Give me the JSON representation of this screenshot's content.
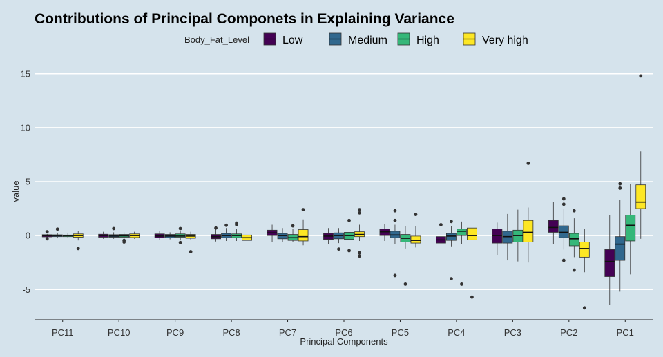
{
  "chart_data": {
    "type": "boxplot",
    "title": "Contributions of Principal Componets in Explaining Variance",
    "xlabel": "Principal Components",
    "ylabel": "value",
    "ylim": [
      -7.8,
      16.2
    ],
    "yticks": [
      -5,
      0,
      5,
      10,
      15
    ],
    "grid": "horizontal major lines",
    "legend": {
      "title": "Body_Fat_Level",
      "position": "top"
    },
    "categories": [
      "PC11",
      "PC10",
      "PC9",
      "PC8",
      "PC7",
      "PC6",
      "PC5",
      "PC4",
      "PC3",
      "PC2",
      "PC1"
    ],
    "series": [
      {
        "name": "Low",
        "color": "#440154",
        "boxes": [
          {
            "min": -0.2,
            "q1": -0.12,
            "median": 0.0,
            "q3": 0.08,
            "max": 0.15,
            "outliers": [
              0.35,
              -0.3
            ]
          },
          {
            "min": -0.3,
            "q1": -0.15,
            "median": 0.0,
            "q3": 0.12,
            "max": 0.35,
            "outliers": []
          },
          {
            "min": -0.4,
            "q1": -0.2,
            "median": -0.05,
            "q3": 0.15,
            "max": 0.45,
            "outliers": []
          },
          {
            "min": -0.55,
            "q1": -0.3,
            "median": -0.1,
            "q3": 0.1,
            "max": 0.6,
            "outliers": [
              0.7
            ]
          },
          {
            "min": -0.6,
            "q1": 0.0,
            "median": 0.25,
            "q3": 0.5,
            "max": 1.0,
            "outliers": []
          },
          {
            "min": -0.8,
            "q1": -0.35,
            "median": -0.05,
            "q3": 0.2,
            "max": 0.7,
            "outliers": []
          },
          {
            "min": -0.5,
            "q1": 0.0,
            "median": 0.35,
            "q3": 0.6,
            "max": 1.1,
            "outliers": []
          },
          {
            "min": -1.3,
            "q1": -0.7,
            "median": -0.4,
            "q3": -0.1,
            "max": 0.5,
            "outliers": [
              1.0
            ]
          },
          {
            "min": -1.8,
            "q1": -0.7,
            "median": 0.0,
            "q3": 0.6,
            "max": 1.2,
            "outliers": []
          },
          {
            "min": -0.8,
            "q1": 0.3,
            "median": 0.75,
            "q3": 1.4,
            "max": 3.1,
            "outliers": []
          },
          {
            "min": -6.4,
            "q1": -3.8,
            "median": -2.4,
            "q3": -1.3,
            "max": 1.9,
            "outliers": []
          }
        ]
      },
      {
        "name": "Medium",
        "color": "#31688e",
        "boxes": [
          {
            "min": -0.25,
            "q1": -0.1,
            "median": 0.0,
            "q3": 0.07,
            "max": 0.2,
            "outliers": [
              0.6
            ]
          },
          {
            "min": -0.3,
            "q1": -0.15,
            "median": -0.05,
            "q3": 0.08,
            "max": 0.3,
            "outliers": [
              0.65
            ]
          },
          {
            "min": -0.35,
            "q1": -0.2,
            "median": -0.05,
            "q3": 0.1,
            "max": 0.3,
            "outliers": []
          },
          {
            "min": -0.5,
            "q1": -0.2,
            "median": 0.0,
            "q3": 0.2,
            "max": 0.7,
            "outliers": [
              0.95
            ]
          },
          {
            "min": -0.6,
            "q1": -0.3,
            "median": 0.0,
            "q3": 0.2,
            "max": 0.7,
            "outliers": []
          },
          {
            "min": -0.7,
            "q1": -0.3,
            "median": 0.0,
            "q3": 0.25,
            "max": 0.7,
            "outliers": [
              -1.25
            ]
          },
          {
            "min": -0.8,
            "q1": -0.2,
            "median": 0.05,
            "q3": 0.4,
            "max": 1.0,
            "outliers": [
              2.3,
              1.4,
              -3.7
            ]
          },
          {
            "min": -1.0,
            "q1": -0.45,
            "median": -0.05,
            "q3": 0.2,
            "max": 0.9,
            "outliers": [
              1.3,
              -4.0
            ]
          },
          {
            "min": -2.3,
            "q1": -0.7,
            "median": -0.1,
            "q3": 0.4,
            "max": 2.0,
            "outliers": []
          },
          {
            "min": -1.3,
            "q1": -0.2,
            "median": 0.3,
            "q3": 0.9,
            "max": 2.5,
            "outliers": [
              3.4,
              2.9,
              -2.3
            ]
          },
          {
            "min": -5.2,
            "q1": -2.3,
            "median": -0.8,
            "q3": -0.1,
            "max": 3.3,
            "outliers": [
              4.8,
              4.4
            ]
          }
        ]
      },
      {
        "name": "High",
        "color": "#35b779",
        "boxes": [
          {
            "min": -0.2,
            "q1": -0.1,
            "median": 0.0,
            "q3": 0.05,
            "max": 0.2,
            "outliers": []
          },
          {
            "min": -0.3,
            "q1": -0.15,
            "median": -0.03,
            "q3": 0.1,
            "max": 0.3,
            "outliers": [
              -0.45,
              -0.6
            ]
          },
          {
            "min": -0.4,
            "q1": -0.15,
            "median": -0.05,
            "q3": 0.15,
            "max": 0.4,
            "outliers": [
              0.65,
              -0.65
            ]
          },
          {
            "min": -0.5,
            "q1": -0.2,
            "median": 0.0,
            "q3": 0.15,
            "max": 0.6,
            "outliers": [
              1.15,
              1.0
            ]
          },
          {
            "min": -0.6,
            "q1": -0.45,
            "median": -0.2,
            "q3": 0.1,
            "max": 0.6,
            "outliers": [
              0.9
            ]
          },
          {
            "min": -0.8,
            "q1": -0.35,
            "median": 0.0,
            "q3": 0.3,
            "max": 0.9,
            "outliers": [
              1.4,
              -1.4
            ]
          },
          {
            "min": -1.2,
            "q1": -0.6,
            "median": -0.25,
            "q3": 0.1,
            "max": 0.9,
            "outliers": [
              -4.5
            ]
          },
          {
            "min": -0.8,
            "q1": 0.0,
            "median": 0.4,
            "q3": 0.6,
            "max": 1.3,
            "outliers": [
              -4.5
            ]
          },
          {
            "min": -2.4,
            "q1": -0.6,
            "median": 0.0,
            "q3": 0.5,
            "max": 2.4,
            "outliers": []
          },
          {
            "min": -2.0,
            "q1": -0.95,
            "median": -0.3,
            "q3": 0.2,
            "max": 1.6,
            "outliers": [
              2.3,
              -3.2
            ]
          },
          {
            "min": -3.6,
            "q1": -0.5,
            "median": 0.95,
            "q3": 1.9,
            "max": 4.8,
            "outliers": []
          }
        ]
      },
      {
        "name": "Very high",
        "color": "#fde725",
        "boxes": [
          {
            "min": -0.45,
            "q1": -0.15,
            "median": 0.0,
            "q3": 0.15,
            "max": 0.4,
            "outliers": [
              -1.2
            ]
          },
          {
            "min": -0.3,
            "q1": -0.18,
            "median": 0.0,
            "q3": 0.15,
            "max": 0.35,
            "outliers": []
          },
          {
            "min": -0.4,
            "q1": -0.25,
            "median": -0.05,
            "q3": 0.1,
            "max": 0.35,
            "outliers": [
              -1.5
            ]
          },
          {
            "min": -0.8,
            "q1": -0.45,
            "median": -0.2,
            "q3": 0.05,
            "max": 0.6,
            "outliers": []
          },
          {
            "min": -0.9,
            "q1": -0.5,
            "median": -0.1,
            "q3": 0.55,
            "max": 1.5,
            "outliers": [
              2.4
            ]
          },
          {
            "min": -0.5,
            "q1": -0.1,
            "median": 0.1,
            "q3": 0.35,
            "max": 1.0,
            "outliers": [
              2.4,
              2.1,
              -1.6,
              -1.9
            ]
          },
          {
            "min": -1.1,
            "q1": -0.7,
            "median": -0.45,
            "q3": -0.05,
            "max": 0.9,
            "outliers": [
              1.95
            ]
          },
          {
            "min": -0.9,
            "q1": -0.4,
            "median": 0.0,
            "q3": 0.7,
            "max": 1.6,
            "outliers": [
              -5.7
            ]
          },
          {
            "min": -2.5,
            "q1": -0.6,
            "median": 0.3,
            "q3": 1.4,
            "max": 2.6,
            "outliers": [
              6.7
            ]
          },
          {
            "min": -3.4,
            "q1": -2.0,
            "median": -1.2,
            "q3": -0.6,
            "max": 0.6,
            "outliers": [
              -6.7
            ]
          },
          {
            "min": -0.3,
            "q1": 2.5,
            "median": 3.1,
            "q3": 4.7,
            "max": 7.8,
            "outliers": [
              14.8
            ]
          }
        ]
      }
    ]
  }
}
